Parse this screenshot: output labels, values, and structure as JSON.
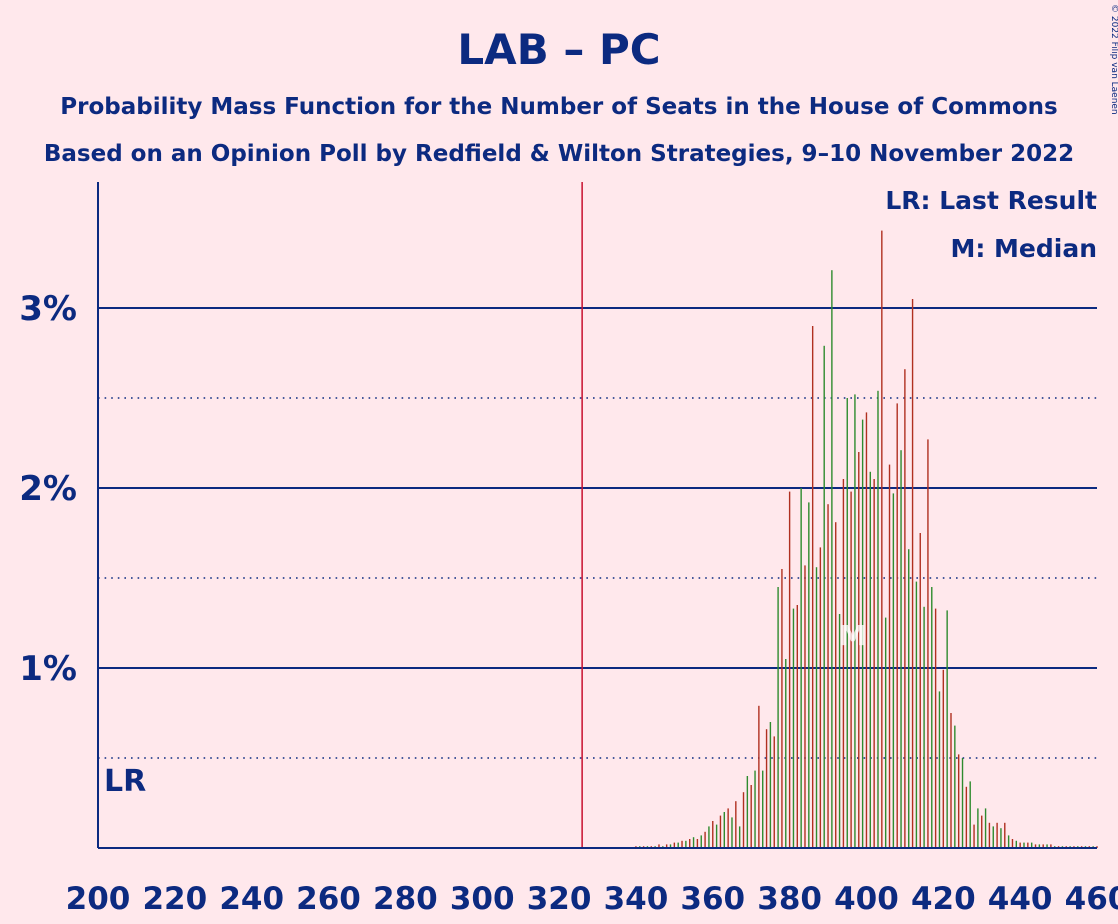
{
  "chart_data": {
    "type": "bar",
    "title": "LAB – PC",
    "subtitle_1": "Probability Mass Function for the Number of Seats in the House of Commons",
    "subtitle_2": "Based on an Opinion Poll by Redfield & Wilton Strategies, 9–10 November 2022",
    "copyright": "© 2022 Filip van Laenen",
    "legend": {
      "placement": "top-right",
      "last_result": "LR: Last Result",
      "median": "M: Median"
    },
    "markers": {
      "last_result_label": "LR",
      "last_result_x": 202,
      "majority_x": 326,
      "median_label": "M",
      "median_x": 398
    },
    "xlim": [
      200,
      460
    ],
    "ylim": [
      0,
      3.7
    ],
    "x_ticks": [
      "200",
      "220",
      "240",
      "260",
      "280",
      "300",
      "320",
      "340",
      "360",
      "380",
      "400",
      "420",
      "440",
      "460"
    ],
    "y_ticks": [
      {
        "value": 1,
        "label": "1%",
        "style": "solid"
      },
      {
        "value": 2,
        "label": "2%",
        "style": "solid"
      },
      {
        "value": 3,
        "label": "3%",
        "style": "solid"
      }
    ],
    "y_minor_grid": [
      0.5,
      1.5,
      2.5
    ],
    "unit": "percent",
    "colors": {
      "background": "#ffe8ec",
      "axis": "#0c2a80",
      "majority_line": "#c8102e",
      "bar_a": "#b03020",
      "bar_b": "#2e8b2e"
    },
    "series": [
      {
        "x": [
          340,
          341,
          342,
          343,
          344,
          345,
          346,
          347,
          348,
          349,
          350,
          351,
          352,
          353,
          354,
          355,
          356,
          357,
          358,
          359,
          360,
          361,
          362,
          363,
          364,
          365,
          366,
          367,
          368,
          369,
          370,
          371,
          372,
          373,
          374,
          375,
          376,
          377,
          378,
          379,
          380,
          381,
          382,
          383,
          384,
          385,
          386,
          387,
          388,
          389,
          390,
          391,
          392,
          393,
          394,
          395,
          396,
          397,
          398,
          399,
          400,
          401,
          402,
          403,
          404,
          405,
          406,
          407,
          408,
          409,
          410,
          411,
          412,
          413,
          414,
          415,
          416,
          417,
          418,
          419,
          420,
          421,
          422,
          423,
          424,
          425,
          426,
          427,
          428,
          429,
          430,
          431,
          432,
          433,
          434,
          435,
          436,
          437,
          438,
          439,
          440,
          441,
          442,
          443,
          444,
          445,
          446,
          447,
          448,
          449,
          450,
          451,
          452,
          453,
          454,
          455,
          456,
          457,
          458,
          459,
          460
        ],
        "values": [
          0.01,
          0.01,
          0.01,
          0.01,
          0.01,
          0.01,
          0.02,
          0.01,
          0.02,
          0.02,
          0.03,
          0.03,
          0.04,
          0.04,
          0.05,
          0.06,
          0.05,
          0.07,
          0.09,
          0.12,
          0.15,
          0.13,
          0.18,
          0.2,
          0.22,
          0.17,
          0.26,
          0.12,
          0.31,
          0.4,
          0.35,
          0.43,
          0.79,
          0.43,
          0.66,
          0.7,
          0.62,
          1.45,
          1.55,
          1.05,
          1.98,
          1.33,
          1.35,
          2.0,
          1.57,
          1.92,
          2.9,
          1.56,
          1.67,
          2.79,
          1.91,
          3.21,
          1.81,
          1.3,
          2.05,
          2.5,
          1.98,
          2.52,
          2.2,
          2.38,
          2.42,
          2.09,
          2.05,
          2.54,
          3.43,
          1.28,
          2.13,
          1.97,
          2.47,
          2.21,
          2.66,
          1.66,
          3.05,
          1.48,
          1.75,
          1.34,
          2.27,
          1.45,
          1.33,
          0.87,
          0.99,
          1.32,
          0.75,
          0.68,
          0.52,
          0.5,
          0.34,
          0.37,
          0.13,
          0.22,
          0.18,
          0.22,
          0.14,
          0.12,
          0.14,
          0.11,
          0.14,
          0.07,
          0.05,
          0.04,
          0.03,
          0.03,
          0.03,
          0.03,
          0.02,
          0.02,
          0.02,
          0.02,
          0.02,
          0.01,
          0.01,
          0.01,
          0.01,
          0.01,
          0.01,
          0.01,
          0.01,
          0.01,
          0.01,
          0.01,
          0.01
        ]
      }
    ]
  }
}
